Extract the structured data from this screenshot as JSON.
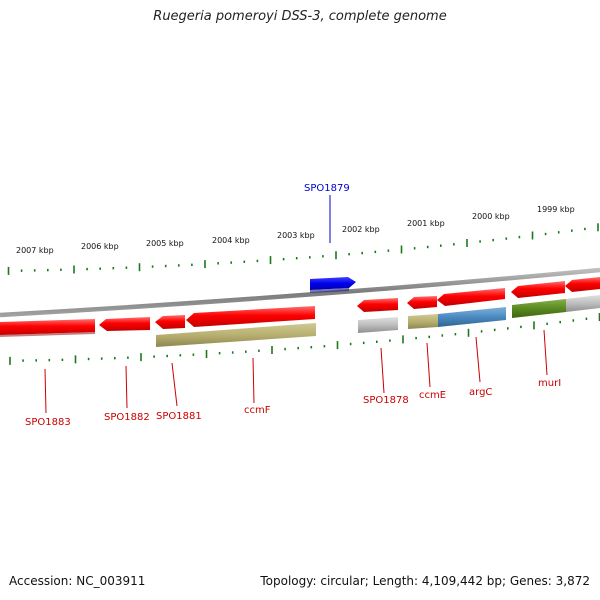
{
  "title": "Ruegeria pomeroyi DSS-3, complete genome",
  "footer": {
    "accession": "Accession: NC_003911",
    "topology": "Topology: circular; Length: 4,109,442 bp; Genes: 3,872"
  },
  "colors": {
    "backbone": "#888888",
    "forward_gene": "#ff1a1a",
    "reverse_gene": "#ff1a1a",
    "highlight_gene": "#0000ee",
    "highlight_label": "#0000cc",
    "label": "#cc0000",
    "tick": "#1a7a1a",
    "olive": "#b8b070",
    "blue": "#4a8ac0",
    "green": "#5a8a20",
    "grey": "#b8b8b8"
  },
  "ruler": {
    "unit": "kbp",
    "ticks": [
      "2007 kbp",
      "2006 kbp",
      "2005 kbp",
      "2004 kbp",
      "2003 kbp",
      "2002 kbp",
      "2001 kbp",
      "2000 kbp",
      "1999 kbp"
    ]
  },
  "genes": [
    {
      "name": "SPO1883",
      "strand": "minus",
      "color": "red"
    },
    {
      "name": "SPO1882",
      "strand": "minus",
      "color": "red"
    },
    {
      "name": "SPO1881",
      "strand": "minus",
      "color": "red"
    },
    {
      "name": "ccmF",
      "strand": "minus",
      "color": "red"
    },
    {
      "name": "SPO1879",
      "strand": "plus",
      "color": "blue"
    },
    {
      "name": "SPO1878",
      "strand": "minus",
      "color": "red"
    },
    {
      "name": "ccmE",
      "strand": "minus",
      "color": "red"
    },
    {
      "name": "argC",
      "strand": "minus",
      "color": "red"
    },
    {
      "name": "murI",
      "strand": "minus",
      "color": "red"
    }
  ]
}
